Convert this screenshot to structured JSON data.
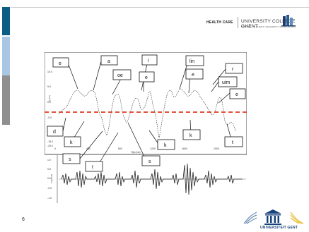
{
  "header": {
    "department_label": "HEALTH CARE",
    "institution_name": "UNIVERSITY COLLEGE GHENT",
    "institution_subtitle": "MEMBER OF GHENT UNIVERSITY ASSOCIATION"
  },
  "slide": {
    "page_number": "6"
  },
  "figure": {
    "phoneme_labels": [
      {
        "name": "label-e-1",
        "text": "e"
      },
      {
        "name": "label-a",
        "text": "a"
      },
      {
        "name": "label-oe",
        "text": "oe"
      },
      {
        "name": "label-i",
        "text": "i"
      },
      {
        "name": "label-e-2",
        "text": "e"
      },
      {
        "name": "label-lin",
        "text": "lin"
      },
      {
        "name": "label-e-3",
        "text": "e"
      },
      {
        "name": "label-r",
        "text": "r"
      },
      {
        "name": "label-uim",
        "text": "uim"
      },
      {
        "name": "label-e-4",
        "text": "e"
      },
      {
        "name": "label-d",
        "text": "d"
      },
      {
        "name": "label-k-1",
        "text": "k"
      },
      {
        "name": "label-s-1",
        "text": "s"
      },
      {
        "name": "label-t-1",
        "text": "t"
      },
      {
        "name": "label-s-2",
        "text": "s"
      },
      {
        "name": "label-k-2",
        "text": "k"
      },
      {
        "name": "label-k-3",
        "text": "k"
      },
      {
        "name": "label-t-2",
        "text": "t"
      }
    ],
    "upper_axis": {
      "y_ticks": [
        "10.0",
        "5.0",
        "0.0",
        "-5.0",
        "-10.0",
        "-15.0",
        "-20.0"
      ],
      "x_ticks": [
        "0",
        "400",
        "800",
        "1200",
        "1600",
        "2000"
      ],
      "x_label": "Tijd (ms)",
      "y_label": "Q (Hz)"
    },
    "lower_axis": {
      "y_ticks": [
        "1.0",
        "0.5",
        "0.0",
        "-0.5",
        "-1.0"
      ],
      "y_label": "Amplitude"
    }
  },
  "colors": {
    "dashed_line": "#e03a1c",
    "bar_blue": "#0b5c86",
    "bar_light": "#a9c6e2",
    "bar_grey": "#8f8f8f"
  },
  "icons": [
    "university-college-logo",
    "ghent-university-logo",
    "decorative-flourish-left",
    "decorative-flourish-right"
  ],
  "footer": {
    "university_label": "UNIVERSITEIT GENT"
  }
}
